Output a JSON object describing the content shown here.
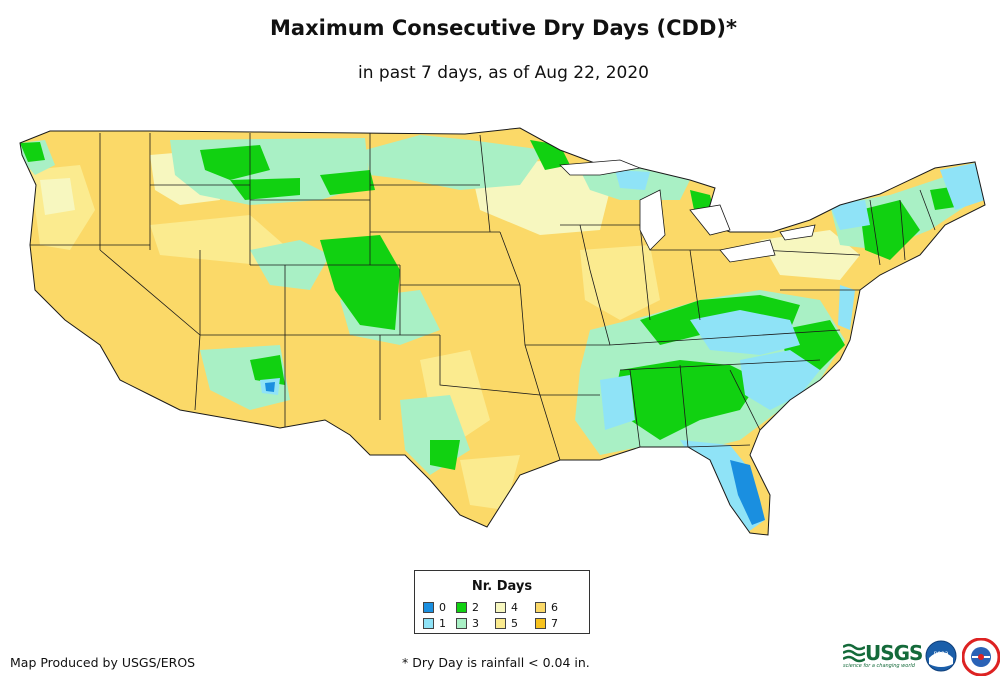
{
  "title": "Maximum Consecutive Dry Days (CDD)*",
  "subtitle": "in past 7 days, as of Aug 22, 2020",
  "legend": {
    "title": "Nr. Days",
    "items": [
      {
        "label": "0",
        "color": "#1a8fe0"
      },
      {
        "label": "1",
        "color": "#8fe3f7"
      },
      {
        "label": "2",
        "color": "#11d111"
      },
      {
        "label": "3",
        "color": "#a9f0c5"
      },
      {
        "label": "4",
        "color": "#f7f7bf"
      },
      {
        "label": "5",
        "color": "#fbeb8f"
      },
      {
        "label": "6",
        "color": "#fbd968"
      },
      {
        "label": "7",
        "color": "#f7c21e"
      }
    ]
  },
  "footer": {
    "credit": "Map Produced by USGS/EROS",
    "note": "* Dry Day is rainfall < 0.04 in."
  },
  "logos": {
    "usgs_word": "USGS",
    "usgs_tagline": "science for a changing world",
    "noaa_text": "noaa"
  },
  "colors": {
    "state_border": "#1a1a1a",
    "map_background": "#ffffff"
  }
}
